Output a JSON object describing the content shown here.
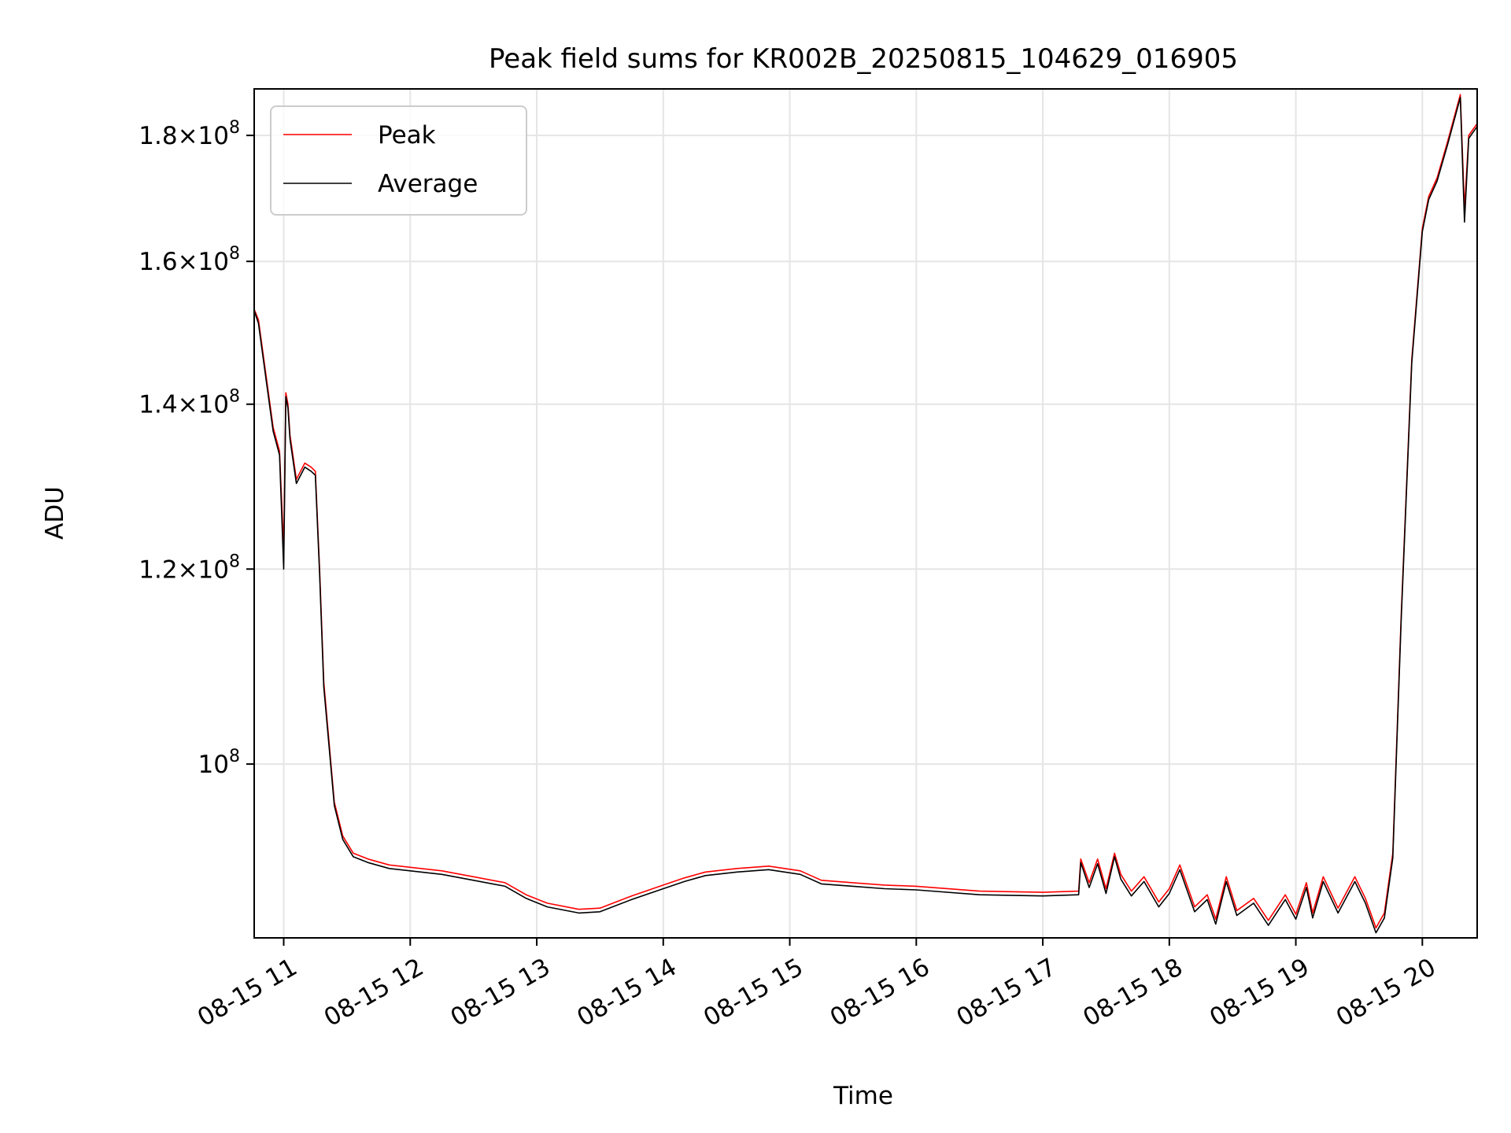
{
  "chart_data": {
    "type": "line",
    "title": "Peak field sums for KR002B_20250815_104629_016905",
    "xlabel": "Time",
    "ylabel": "ADU",
    "yscale": "log",
    "grid": true,
    "legend_position": "top-left",
    "xlim": [
      "2025-08-15 10:46",
      "2025-08-15 20:26"
    ],
    "ylim": [
      85000000,
      188000000
    ],
    "x_ticks": [
      {
        "value": "2025-08-15 11:00",
        "label": "08-15 11"
      },
      {
        "value": "2025-08-15 12:00",
        "label": "08-15 12"
      },
      {
        "value": "2025-08-15 13:00",
        "label": "08-15 13"
      },
      {
        "value": "2025-08-15 14:00",
        "label": "08-15 14"
      },
      {
        "value": "2025-08-15 15:00",
        "label": "08-15 15"
      },
      {
        "value": "2025-08-15 16:00",
        "label": "08-15 16"
      },
      {
        "value": "2025-08-15 17:00",
        "label": "08-15 17"
      },
      {
        "value": "2025-08-15 18:00",
        "label": "08-15 18"
      },
      {
        "value": "2025-08-15 19:00",
        "label": "08-15 19"
      },
      {
        "value": "2025-08-15 20:00",
        "label": "08-15 20"
      }
    ],
    "y_ticks": [
      {
        "value": 100000000,
        "mant": "",
        "exp": "8"
      },
      {
        "value": 120000000,
        "mant": "1.2",
        "exp": "8"
      },
      {
        "value": 140000000,
        "mant": "1.4",
        "exp": "8"
      },
      {
        "value": 160000000,
        "mant": "1.6",
        "exp": "8"
      },
      {
        "value": 180000000,
        "mant": "1.8",
        "exp": "8"
      }
    ],
    "series": [
      {
        "name": "Peak",
        "color": "#ff0000",
        "x": [
          "2025-08-15 10:46",
          "2025-08-15 10:48",
          "2025-08-15 10:52",
          "2025-08-15 10:55",
          "2025-08-15 10:58",
          "2025-08-15 11:00",
          "2025-08-15 11:01",
          "2025-08-15 11:02",
          "2025-08-15 11:03",
          "2025-08-15 11:06",
          "2025-08-15 11:10",
          "2025-08-15 11:13",
          "2025-08-15 11:15",
          "2025-08-15 11:17",
          "2025-08-15 11:19",
          "2025-08-15 11:24",
          "2025-08-15 11:28",
          "2025-08-15 11:33",
          "2025-08-15 11:40",
          "2025-08-15 11:50",
          "2025-08-15 12:00",
          "2025-08-15 12:15",
          "2025-08-15 12:30",
          "2025-08-15 12:45",
          "2025-08-15 12:55",
          "2025-08-15 13:05",
          "2025-08-15 13:20",
          "2025-08-15 13:30",
          "2025-08-15 13:45",
          "2025-08-15 14:00",
          "2025-08-15 14:10",
          "2025-08-15 14:20",
          "2025-08-15 14:35",
          "2025-08-15 14:50",
          "2025-08-15 15:05",
          "2025-08-15 15:15",
          "2025-08-15 15:30",
          "2025-08-15 15:45",
          "2025-08-15 16:00",
          "2025-08-15 16:30",
          "2025-08-15 17:00",
          "2025-08-15 17:17",
          "2025-08-15 17:18",
          "2025-08-15 17:22",
          "2025-08-15 17:26",
          "2025-08-15 17:30",
          "2025-08-15 17:34",
          "2025-08-15 17:37",
          "2025-08-15 17:42",
          "2025-08-15 17:48",
          "2025-08-15 17:55",
          "2025-08-15 18:00",
          "2025-08-15 18:05",
          "2025-08-15 18:12",
          "2025-08-15 18:18",
          "2025-08-15 18:22",
          "2025-08-15 18:27",
          "2025-08-15 18:32",
          "2025-08-15 18:40",
          "2025-08-15 18:47",
          "2025-08-15 18:55",
          "2025-08-15 19:00",
          "2025-08-15 19:05",
          "2025-08-15 19:08",
          "2025-08-15 19:13",
          "2025-08-15 19:20",
          "2025-08-15 19:28",
          "2025-08-15 19:33",
          "2025-08-15 19:38",
          "2025-08-15 19:42",
          "2025-08-15 19:46",
          "2025-08-15 19:50",
          "2025-08-15 19:55",
          "2025-08-15 20:00",
          "2025-08-15 20:03",
          "2025-08-15 20:07",
          "2025-08-15 20:12",
          "2025-08-15 20:18",
          "2025-08-15 20:20",
          "2025-08-15 20:22",
          "2025-08-15 20:26"
        ],
        "values": [
          153000000,
          151500000,
          143000000,
          137000000,
          134000000,
          122000000,
          141500000,
          140000000,
          136000000,
          130500000,
          132500000,
          132000000,
          131500000,
          120000000,
          108000000,
          96500000,
          93500000,
          92000000,
          91500000,
          91000000,
          90800000,
          90500000,
          90000000,
          89500000,
          88500000,
          87800000,
          87300000,
          87400000,
          88400000,
          89300000,
          89900000,
          90400000,
          90700000,
          90900000,
          90500000,
          89700000,
          89500000,
          89300000,
          89200000,
          88800000,
          88700000,
          88800000,
          91500000,
          89500000,
          91500000,
          89000000,
          92000000,
          90200000,
          88800000,
          90000000,
          87900000,
          89000000,
          91000000,
          87500000,
          88500000,
          86500000,
          90000000,
          87200000,
          88200000,
          86400000,
          88500000,
          86900000,
          89500000,
          87000000,
          90000000,
          87400000,
          90000000,
          88200000,
          85800000,
          87000000,
          92000000,
          115000000,
          146000000,
          165000000,
          170000000,
          173000000,
          179000000,
          187000000,
          168000000,
          180000000,
          182000000
        ]
      },
      {
        "name": "Average",
        "color": "#000000",
        "x": [
          "2025-08-15 10:46",
          "2025-08-15 10:48",
          "2025-08-15 10:52",
          "2025-08-15 10:55",
          "2025-08-15 10:58",
          "2025-08-15 11:00",
          "2025-08-15 11:01",
          "2025-08-15 11:02",
          "2025-08-15 11:03",
          "2025-08-15 11:06",
          "2025-08-15 11:10",
          "2025-08-15 11:13",
          "2025-08-15 11:15",
          "2025-08-15 11:17",
          "2025-08-15 11:19",
          "2025-08-15 11:24",
          "2025-08-15 11:28",
          "2025-08-15 11:33",
          "2025-08-15 11:40",
          "2025-08-15 11:50",
          "2025-08-15 12:00",
          "2025-08-15 12:15",
          "2025-08-15 12:30",
          "2025-08-15 12:45",
          "2025-08-15 12:55",
          "2025-08-15 13:05",
          "2025-08-15 13:20",
          "2025-08-15 13:30",
          "2025-08-15 13:45",
          "2025-08-15 14:00",
          "2025-08-15 14:10",
          "2025-08-15 14:20",
          "2025-08-15 14:35",
          "2025-08-15 14:50",
          "2025-08-15 15:05",
          "2025-08-15 15:15",
          "2025-08-15 15:30",
          "2025-08-15 15:45",
          "2025-08-15 16:00",
          "2025-08-15 16:30",
          "2025-08-15 17:00",
          "2025-08-15 17:17",
          "2025-08-15 17:18",
          "2025-08-15 17:22",
          "2025-08-15 17:26",
          "2025-08-15 17:30",
          "2025-08-15 17:34",
          "2025-08-15 17:37",
          "2025-08-15 17:42",
          "2025-08-15 17:48",
          "2025-08-15 17:55",
          "2025-08-15 18:00",
          "2025-08-15 18:05",
          "2025-08-15 18:12",
          "2025-08-15 18:18",
          "2025-08-15 18:22",
          "2025-08-15 18:27",
          "2025-08-15 18:32",
          "2025-08-15 18:40",
          "2025-08-15 18:47",
          "2025-08-15 18:55",
          "2025-08-15 19:00",
          "2025-08-15 19:05",
          "2025-08-15 19:08",
          "2025-08-15 19:13",
          "2025-08-15 19:20",
          "2025-08-15 19:28",
          "2025-08-15 19:33",
          "2025-08-15 19:38",
          "2025-08-15 19:42",
          "2025-08-15 19:46",
          "2025-08-15 19:50",
          "2025-08-15 19:55",
          "2025-08-15 20:00",
          "2025-08-15 20:03",
          "2025-08-15 20:07",
          "2025-08-15 20:12",
          "2025-08-15 20:18",
          "2025-08-15 20:20",
          "2025-08-15 20:22",
          "2025-08-15 20:26"
        ],
        "values": [
          152800000,
          151000000,
          142500000,
          136500000,
          133500000,
          120000000,
          141000000,
          139500000,
          135500000,
          130000000,
          132000000,
          131500000,
          131000000,
          119500000,
          107500000,
          96200000,
          93200000,
          91700000,
          91200000,
          90700000,
          90500000,
          90200000,
          89700000,
          89200000,
          88200000,
          87500000,
          87000000,
          87100000,
          88100000,
          89000000,
          89600000,
          90100000,
          90400000,
          90600000,
          90200000,
          89400000,
          89200000,
          89000000,
          88900000,
          88500000,
          88400000,
          88500000,
          91200000,
          89100000,
          91100000,
          88600000,
          91700000,
          89800000,
          88400000,
          89600000,
          87500000,
          88600000,
          90600000,
          87100000,
          88100000,
          86100000,
          89600000,
          86800000,
          87800000,
          86000000,
          88100000,
          86500000,
          89100000,
          86600000,
          89600000,
          87000000,
          89600000,
          87800000,
          85400000,
          86600000,
          91600000,
          114500000,
          145500000,
          164500000,
          169500000,
          172500000,
          178500000,
          186500000,
          166000000,
          179500000,
          181500000
        ]
      }
    ]
  }
}
